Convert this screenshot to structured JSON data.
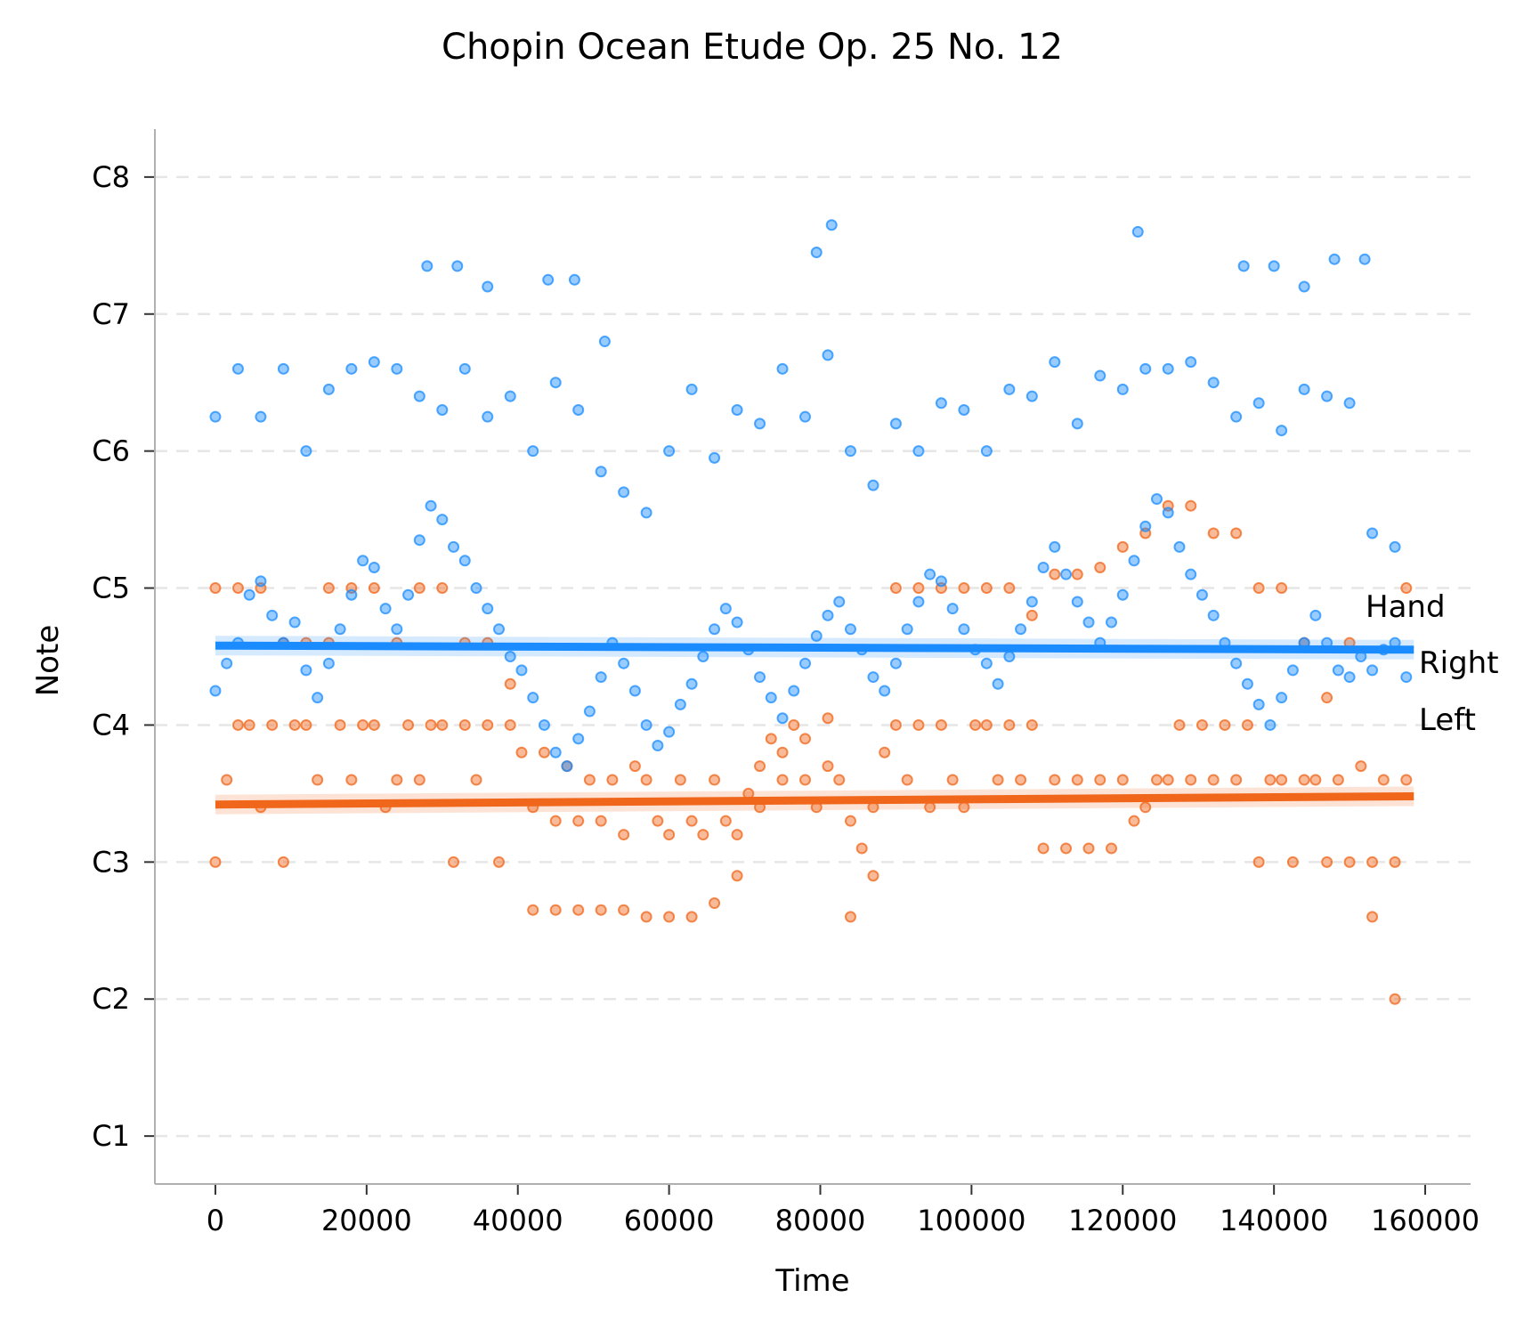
{
  "chart_data": {
    "type": "scatter",
    "title": "Chopin Ocean Etude Op. 25 No. 12",
    "xlabel": "Time",
    "ylabel": "Note",
    "xlim": [
      -8000,
      166000
    ],
    "ylim": [
      -0.35,
      7.35
    ],
    "x_ticks": [
      0,
      20000,
      40000,
      60000,
      80000,
      100000,
      120000,
      140000,
      160000
    ],
    "x_tick_labels": [
      "0",
      "20000",
      "40000",
      "60000",
      "80000",
      "100000",
      "120000",
      "140000",
      "160000"
    ],
    "y_ticks": [
      0,
      1,
      2,
      3,
      4,
      5,
      6,
      7
    ],
    "y_tick_labels": [
      "C1",
      "C2",
      "C3",
      "C4",
      "C5",
      "C6",
      "C7",
      "C8"
    ],
    "grid": "horizontal dashed",
    "legend": {
      "title": "Hand",
      "placement": "right",
      "entries": [
        "Right",
        "Left"
      ]
    },
    "series": [
      {
        "name": "Right",
        "color": "#1a8cff",
        "trend": {
          "x": [
            0,
            158500
          ],
          "y": [
            3.58,
            3.55
          ]
        },
        "points": {
          "x": [
            0,
            1500,
            3000,
            4500,
            6000,
            7500,
            9000,
            10500,
            12000,
            13500,
            15000,
            16500,
            18000,
            19500,
            21000,
            22500,
            24000,
            25500,
            27000,
            28500,
            30000,
            31500,
            33000,
            34500,
            36000,
            37500,
            39000,
            40500,
            42000,
            43500,
            45000,
            46500,
            48000,
            49500,
            51000,
            52500,
            54000,
            55500,
            57000,
            58500,
            60000,
            61500,
            63000,
            64500,
            66000,
            67500,
            69000,
            70500,
            72000,
            73500,
            75000,
            76500,
            78000,
            79500,
            81000,
            82500,
            84000,
            85500,
            87000,
            88500,
            90000,
            91500,
            93000,
            94500,
            96000,
            97500,
            99000,
            100500,
            102000,
            103500,
            105000,
            106500,
            108000,
            109500,
            111000,
            112500,
            114000,
            115500,
            117000,
            118500,
            120000,
            121500,
            123000,
            124500,
            126000,
            127500,
            129000,
            130500,
            132000,
            133500,
            135000,
            136500,
            138000,
            139500,
            141000,
            142500,
            144000,
            145500,
            147000,
            148500,
            150000,
            151500,
            153000,
            154500,
            156000,
            157500,
            0,
            3000,
            6000,
            9000,
            12000,
            15000,
            18000,
            21000,
            24000,
            27000,
            30000,
            33000,
            36000,
            39000,
            42000,
            45000,
            48000,
            51000,
            54000,
            57000,
            60000,
            63000,
            66000,
            69000,
            72000,
            75000,
            78000,
            81000,
            84000,
            87000,
            90000,
            93000,
            96000,
            99000,
            102000,
            105000,
            108000,
            111000,
            114000,
            117000,
            120000,
            123000,
            126000,
            129000,
            132000,
            135000,
            138000,
            141000,
            144000,
            147000,
            150000,
            153000,
            156000,
            28000,
            32000,
            36000,
            44000,
            47500,
            51500,
            79500,
            81500,
            122000,
            136000,
            140000,
            144000,
            148000,
            152000
          ],
          "y": [
            3.25,
            3.45,
            3.6,
            3.95,
            4.05,
            3.8,
            3.6,
            3.75,
            3.4,
            3.2,
            3.45,
            3.7,
            3.95,
            4.2,
            4.15,
            3.85,
            3.7,
            3.95,
            4.35,
            4.6,
            4.5,
            4.3,
            4.2,
            4.0,
            3.85,
            3.7,
            3.5,
            3.4,
            3.2,
            3.0,
            2.8,
            2.7,
            2.9,
            3.1,
            3.35,
            3.6,
            3.45,
            3.25,
            3.0,
            2.85,
            2.95,
            3.15,
            3.3,
            3.5,
            3.7,
            3.85,
            3.75,
            3.55,
            3.35,
            3.2,
            3.05,
            3.25,
            3.45,
            3.65,
            3.8,
            3.9,
            3.7,
            3.55,
            3.35,
            3.25,
            3.45,
            3.7,
            3.9,
            4.1,
            4.05,
            3.85,
            3.7,
            3.55,
            3.45,
            3.3,
            3.5,
            3.7,
            3.9,
            4.15,
            4.3,
            4.1,
            3.9,
            3.75,
            3.6,
            3.75,
            3.95,
            4.2,
            4.45,
            4.65,
            4.55,
            4.3,
            4.1,
            3.95,
            3.8,
            3.6,
            3.45,
            3.3,
            3.15,
            3.0,
            3.2,
            3.4,
            3.6,
            3.8,
            3.6,
            3.4,
            3.35,
            3.5,
            3.4,
            3.55,
            3.6,
            3.35,
            5.25,
            5.6,
            5.25,
            5.6,
            5.0,
            5.45,
            5.6,
            5.65,
            5.6,
            5.4,
            5.3,
            5.6,
            5.25,
            5.4,
            5.0,
            5.5,
            5.3,
            4.85,
            4.7,
            4.55,
            5.0,
            5.45,
            4.95,
            5.3,
            5.2,
            5.6,
            5.25,
            5.7,
            5.0,
            4.75,
            5.2,
            5.0,
            5.35,
            5.3,
            5.0,
            5.45,
            5.4,
            5.65,
            5.2,
            5.55,
            5.45,
            5.6,
            5.6,
            5.65,
            5.5,
            5.25,
            5.35,
            5.15,
            5.45,
            5.4,
            5.35,
            4.4,
            4.3,
            6.35,
            6.35,
            6.2,
            6.25,
            6.25,
            5.8,
            6.45,
            6.65,
            6.6,
            6.35,
            6.35,
            6.2,
            6.4,
            6.4
          ]
        }
      },
      {
        "name": "Left",
        "color": "#f0661a",
        "trend": {
          "x": [
            0,
            158500
          ],
          "y": [
            2.42,
            2.48
          ]
        },
        "points": {
          "x": [
            0,
            1500,
            3000,
            4500,
            6000,
            7500,
            9000,
            10500,
            12000,
            13500,
            15000,
            16500,
            18000,
            19500,
            21000,
            22500,
            24000,
            25500,
            27000,
            28500,
            30000,
            31500,
            33000,
            34500,
            36000,
            37500,
            39000,
            40500,
            42000,
            43500,
            45000,
            46500,
            48000,
            49500,
            51000,
            52500,
            54000,
            55500,
            57000,
            58500,
            60000,
            61500,
            63000,
            64500,
            66000,
            67500,
            69000,
            70500,
            72000,
            73500,
            75000,
            76500,
            78000,
            79500,
            81000,
            82500,
            84000,
            85500,
            87000,
            88500,
            90000,
            91500,
            93000,
            94500,
            96000,
            97500,
            99000,
            100500,
            102000,
            103500,
            105000,
            106500,
            108000,
            109500,
            111000,
            112500,
            114000,
            115500,
            117000,
            118500,
            120000,
            121500,
            123000,
            124500,
            126000,
            127500,
            129000,
            130500,
            132000,
            133500,
            135000,
            136500,
            138000,
            139500,
            141000,
            142500,
            144000,
            145500,
            147000,
            148500,
            150000,
            151500,
            153000,
            154500,
            156000,
            157500,
            0,
            3000,
            6000,
            9000,
            12000,
            15000,
            18000,
            21000,
            24000,
            27000,
            30000,
            33000,
            36000,
            39000,
            42000,
            45000,
            48000,
            51000,
            54000,
            57000,
            60000,
            63000,
            66000,
            69000,
            72000,
            75000,
            78000,
            81000,
            84000,
            87000,
            90000,
            93000,
            96000,
            99000,
            102000,
            105000,
            108000,
            111000,
            114000,
            117000,
            120000,
            123000,
            126000,
            129000,
            132000,
            135000,
            138000,
            141000,
            144000,
            147000,
            150000,
            153000,
            156000,
            157500
          ],
          "y": [
            2.0,
            2.6,
            3.0,
            3.0,
            2.4,
            3.0,
            2.0,
            3.0,
            3.0,
            2.6,
            3.6,
            3.0,
            2.6,
            3.0,
            3.0,
            2.4,
            2.6,
            3.0,
            2.6,
            3.0,
            3.0,
            2.0,
            3.0,
            2.6,
            3.0,
            2.0,
            3.0,
            2.8,
            2.4,
            2.8,
            2.3,
            2.7,
            2.3,
            2.6,
            2.3,
            2.6,
            2.2,
            2.7,
            2.6,
            2.3,
            2.2,
            2.6,
            2.3,
            2.2,
            2.6,
            2.3,
            2.2,
            2.5,
            2.7,
            2.9,
            2.8,
            3.0,
            2.6,
            2.4,
            2.7,
            2.6,
            2.3,
            2.1,
            2.4,
            2.8,
            3.0,
            2.6,
            3.0,
            2.4,
            3.0,
            2.6,
            2.4,
            3.0,
            3.0,
            2.6,
            3.0,
            2.6,
            3.0,
            2.1,
            2.6,
            2.1,
            2.6,
            2.1,
            2.6,
            2.1,
            2.6,
            2.3,
            2.4,
            2.6,
            2.6,
            3.0,
            2.6,
            3.0,
            2.6,
            3.0,
            2.6,
            3.0,
            2.0,
            2.6,
            2.6,
            2.0,
            2.6,
            2.6,
            2.0,
            2.6,
            2.0,
            2.7,
            2.0,
            2.6,
            2.0,
            2.6,
            4.0,
            4.0,
            4.0,
            3.6,
            3.6,
            4.0,
            4.0,
            4.0,
            3.6,
            4.0,
            4.0,
            3.6,
            3.6,
            3.3,
            1.65,
            1.65,
            1.65,
            1.65,
            1.65,
            1.6,
            1.6,
            1.6,
            1.7,
            1.9,
            2.4,
            2.6,
            2.9,
            3.05,
            1.6,
            1.9,
            4.0,
            4.0,
            4.0,
            4.0,
            4.0,
            4.0,
            3.8,
            4.1,
            4.1,
            4.15,
            4.3,
            4.4,
            4.6,
            4.6,
            4.4,
            4.4,
            4.0,
            4.0,
            3.6,
            3.2,
            3.6,
            1.6,
            1.0,
            4.0
          ]
        }
      }
    ]
  }
}
